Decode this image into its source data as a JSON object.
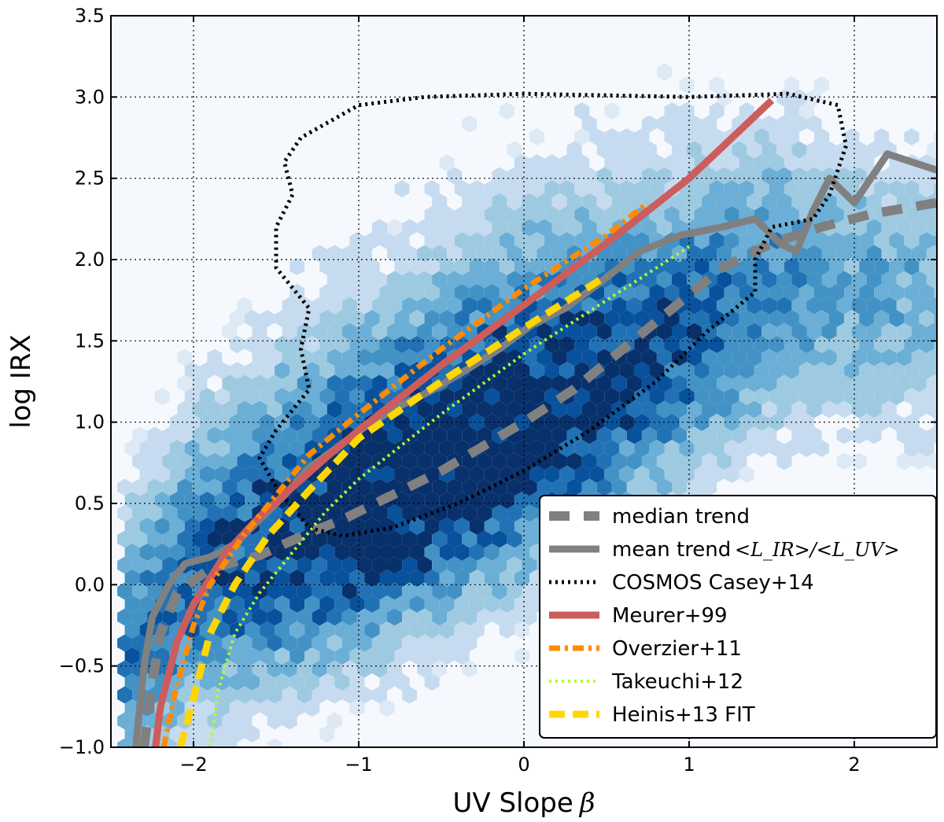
{
  "chart_data": {
    "type": "scatter",
    "title": "",
    "xlabel": "UV Slope",
    "xlabel_symbol": "β",
    "ylabel": "log IRX",
    "xlim": [
      -2.5,
      2.5
    ],
    "ylim": [
      -1.0,
      3.5
    ],
    "xticks": [
      -2,
      -1,
      0,
      1,
      2
    ],
    "yticks": [
      -1.0,
      -0.5,
      0.0,
      0.5,
      1.0,
      1.5,
      2.0,
      2.5,
      3.0,
      3.5
    ],
    "xtick_labels": [
      "−2",
      "−1",
      "0",
      "1",
      "2"
    ],
    "ytick_labels": [
      "−1.0",
      "−0.5",
      "0.0",
      "0.5",
      "1.0",
      "1.5",
      "2.0",
      "2.5",
      "3.0",
      "3.5"
    ],
    "grid": true,
    "legend_position": "lower-right",
    "background": {
      "kind": "hexbin-density",
      "colormap": "Blues",
      "ridge": [
        [
          -2.4,
          -0.45
        ],
        [
          -2.0,
          0.05
        ],
        [
          -1.5,
          0.25
        ],
        [
          -1.0,
          0.45
        ],
        [
          -0.5,
          0.7
        ],
        [
          0.0,
          0.95
        ],
        [
          0.5,
          1.2
        ],
        [
          1.0,
          1.5
        ],
        [
          1.5,
          1.8
        ]
      ]
    },
    "series": [
      {
        "name": "median trend",
        "color": "#808080",
        "style": "dashed",
        "points": [
          [
            -2.3,
            -1.0
          ],
          [
            -2.25,
            -0.6
          ],
          [
            -2.2,
            -0.3
          ],
          [
            -2.1,
            -0.05
          ],
          [
            -1.9,
            0.1
          ],
          [
            -1.6,
            0.18
          ],
          [
            -1.3,
            0.32
          ],
          [
            -1.1,
            0.4
          ],
          [
            -0.8,
            0.55
          ],
          [
            -0.5,
            0.7
          ],
          [
            -0.2,
            0.88
          ],
          [
            0.0,
            1.0
          ],
          [
            0.3,
            1.2
          ],
          [
            0.6,
            1.45
          ],
          [
            0.9,
            1.7
          ],
          [
            1.2,
            1.95
          ],
          [
            1.5,
            2.1
          ],
          [
            1.8,
            2.2
          ],
          [
            2.1,
            2.28
          ],
          [
            2.5,
            2.35
          ]
        ]
      },
      {
        "name": "mean trend",
        "name_math": "<L_IR>/<L_UV>",
        "color": "#808080",
        "style": "solid",
        "points": [
          [
            -2.35,
            -1.0
          ],
          [
            -2.3,
            -0.5
          ],
          [
            -2.25,
            -0.2
          ],
          [
            -2.15,
            0.0
          ],
          [
            -2.05,
            0.13
          ],
          [
            -1.9,
            0.17
          ],
          [
            -1.75,
            0.25
          ],
          [
            -1.6,
            0.4
          ],
          [
            -1.45,
            0.55
          ],
          [
            -1.3,
            0.72
          ],
          [
            -1.15,
            0.83
          ],
          [
            -0.95,
            0.98
          ],
          [
            -0.75,
            1.1
          ],
          [
            -0.55,
            1.2
          ],
          [
            -0.35,
            1.32
          ],
          [
            -0.15,
            1.45
          ],
          [
            0.05,
            1.6
          ],
          [
            0.25,
            1.7
          ],
          [
            0.45,
            1.85
          ],
          [
            0.7,
            2.05
          ],
          [
            0.95,
            2.15
          ],
          [
            1.2,
            2.2
          ],
          [
            1.4,
            2.25
          ],
          [
            1.55,
            2.1
          ],
          [
            1.65,
            2.05
          ],
          [
            1.75,
            2.3
          ],
          [
            1.85,
            2.5
          ],
          [
            2.0,
            2.35
          ],
          [
            2.2,
            2.65
          ],
          [
            2.35,
            2.6
          ],
          [
            2.5,
            2.55
          ]
        ]
      },
      {
        "name": "COSMOS Casey+14",
        "color": "#000000",
        "style": "dotted",
        "points": [
          [
            -1.3,
            0.35
          ],
          [
            -1.1,
            0.3
          ],
          [
            -0.8,
            0.35
          ],
          [
            -0.4,
            0.5
          ],
          [
            0.0,
            0.7
          ],
          [
            0.4,
            0.95
          ],
          [
            0.8,
            1.25
          ],
          [
            1.1,
            1.55
          ],
          [
            1.4,
            1.8
          ],
          [
            1.4,
            2.0
          ],
          [
            1.5,
            2.2
          ],
          [
            1.75,
            2.25
          ],
          [
            1.85,
            2.4
          ],
          [
            1.95,
            2.7
          ],
          [
            1.9,
            2.95
          ],
          [
            1.6,
            3.02
          ],
          [
            1.0,
            3.0
          ],
          [
            0.0,
            3.02
          ],
          [
            -0.6,
            3.0
          ],
          [
            -1.0,
            2.95
          ],
          [
            -1.35,
            2.75
          ],
          [
            -1.45,
            2.6
          ],
          [
            -1.4,
            2.4
          ],
          [
            -1.5,
            2.2
          ],
          [
            -1.5,
            1.95
          ],
          [
            -1.3,
            1.7
          ],
          [
            -1.35,
            1.45
          ],
          [
            -1.3,
            1.2
          ],
          [
            -1.5,
            0.95
          ],
          [
            -1.6,
            0.78
          ],
          [
            -1.5,
            0.6
          ],
          [
            -1.3,
            0.35
          ]
        ]
      },
      {
        "name": "Meurer+99",
        "color": "#cd5c5c",
        "style": "solid",
        "points": [
          [
            -2.23,
            -1.0
          ],
          [
            -2.2,
            -0.75
          ],
          [
            -2.1,
            -0.35
          ],
          [
            -2.0,
            -0.12
          ],
          [
            -1.8,
            0.2
          ],
          [
            -1.6,
            0.42
          ],
          [
            -1.4,
            0.6
          ],
          [
            -1.2,
            0.78
          ],
          [
            -1.0,
            0.95
          ],
          [
            -0.5,
            1.35
          ],
          [
            0.0,
            1.72
          ],
          [
            0.5,
            2.1
          ],
          [
            1.0,
            2.5
          ],
          [
            1.5,
            2.98
          ]
        ]
      },
      {
        "name": "Overzier+11",
        "color": "#ff8c00",
        "style": "dashdot",
        "points": [
          [
            -2.18,
            -1.0
          ],
          [
            -2.12,
            -0.7
          ],
          [
            -2.0,
            -0.25
          ],
          [
            -1.9,
            0.0
          ],
          [
            -1.7,
            0.3
          ],
          [
            -1.5,
            0.55
          ],
          [
            -1.3,
            0.8
          ],
          [
            -1.0,
            1.05
          ],
          [
            -0.5,
            1.45
          ],
          [
            0.0,
            1.82
          ],
          [
            0.5,
            2.15
          ],
          [
            0.75,
            2.35
          ]
        ]
      },
      {
        "name": "Takeuchi+12",
        "color": "#adff2f",
        "style": "dotted",
        "points": [
          [
            -1.9,
            -1.0
          ],
          [
            -1.85,
            -0.65
          ],
          [
            -1.75,
            -0.3
          ],
          [
            -1.6,
            -0.05
          ],
          [
            -1.4,
            0.2
          ],
          [
            -1.2,
            0.45
          ],
          [
            -1.0,
            0.65
          ],
          [
            -0.5,
            1.05
          ],
          [
            0.0,
            1.42
          ],
          [
            0.5,
            1.75
          ],
          [
            1.0,
            2.08
          ]
        ]
      },
      {
        "name": "Heinis+13 FIT",
        "color": "#ffd700",
        "style": "dashed",
        "points": [
          [
            -2.08,
            -1.0
          ],
          [
            -2.0,
            -0.7
          ],
          [
            -1.9,
            -0.3
          ],
          [
            -1.75,
            0.0
          ],
          [
            -1.55,
            0.3
          ],
          [
            -1.3,
            0.58
          ],
          [
            -1.0,
            0.9
          ],
          [
            -0.5,
            1.25
          ],
          [
            0.0,
            1.58
          ],
          [
            0.5,
            1.9
          ]
        ]
      }
    ]
  }
}
